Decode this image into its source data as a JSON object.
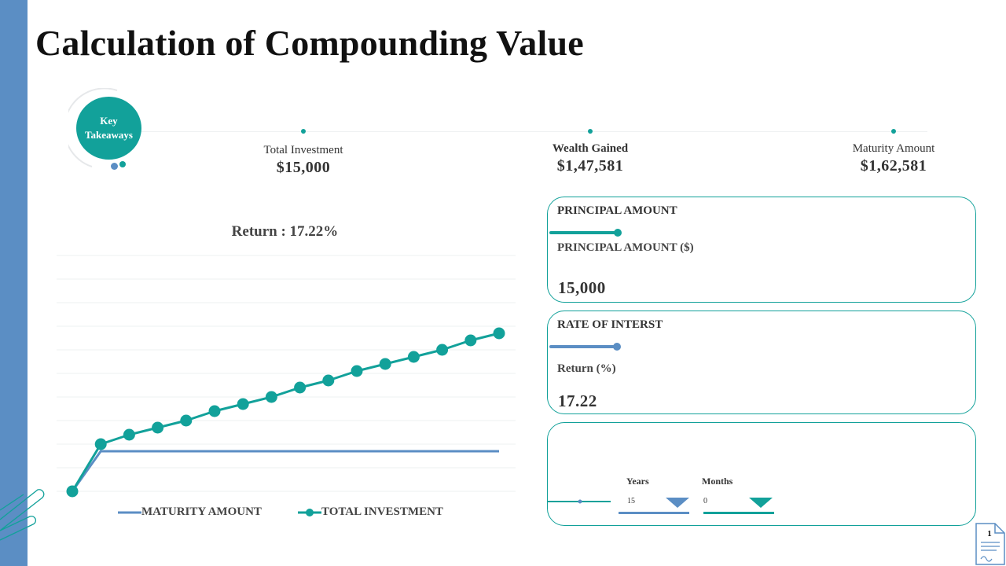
{
  "title": "Calculation of  Compounding Value",
  "key_takeaways": {
    "label": "Key Takeaways"
  },
  "stats": {
    "total_investment": {
      "label": "Total Investment",
      "value": "$15,000"
    },
    "wealth_gained": {
      "label": "Wealth Gained",
      "value": "$1,47,581"
    },
    "maturity_amount": {
      "label": "Maturity Amount",
      "value": "$1,62,581"
    }
  },
  "colors": {
    "accent_teal": "#12a19a",
    "accent_blue": "#5b8ec4",
    "band_blue": "#5b8ec4"
  },
  "principal_card": {
    "heading": "PRINCIPAL AMOUNT",
    "field_label": "PRINCIPAL AMOUNT ($)",
    "value": "15,000",
    "slider_fraction": 0.15
  },
  "rate_card": {
    "heading": "RATE OF INTERST",
    "field_label": "Return (%)",
    "value": "17.22",
    "slider_fraction": 0.17
  },
  "tenure_card": {
    "years_label": "Years",
    "years_value": "15",
    "months_label": "Months",
    "months_value": "0"
  },
  "page_number": "1",
  "chart_data": {
    "type": "line",
    "title": "Return : 17.22%",
    "x": [
      0,
      1,
      2,
      3,
      4,
      5,
      6,
      7,
      8,
      9,
      10,
      11,
      12,
      13,
      14,
      15
    ],
    "ylim": [
      0,
      10
    ],
    "grid": true,
    "legend_position": "bottom",
    "series": [
      {
        "name": "MATURITY AMOUNT",
        "color": "#5b8ec4",
        "markers": false,
        "values": [
          0,
          1.7,
          1.7,
          1.7,
          1.7,
          1.7,
          1.7,
          1.7,
          1.7,
          1.7,
          1.7,
          1.7,
          1.7,
          1.7,
          1.7,
          1.7
        ]
      },
      {
        "name": "TOTAL INVESTMENT",
        "color": "#12a19a",
        "markers": true,
        "values": [
          0,
          2.0,
          2.4,
          2.7,
          3.0,
          3.4,
          3.7,
          4.0,
          4.4,
          4.7,
          5.1,
          5.4,
          5.7,
          6.0,
          6.4,
          6.7
        ]
      }
    ]
  }
}
